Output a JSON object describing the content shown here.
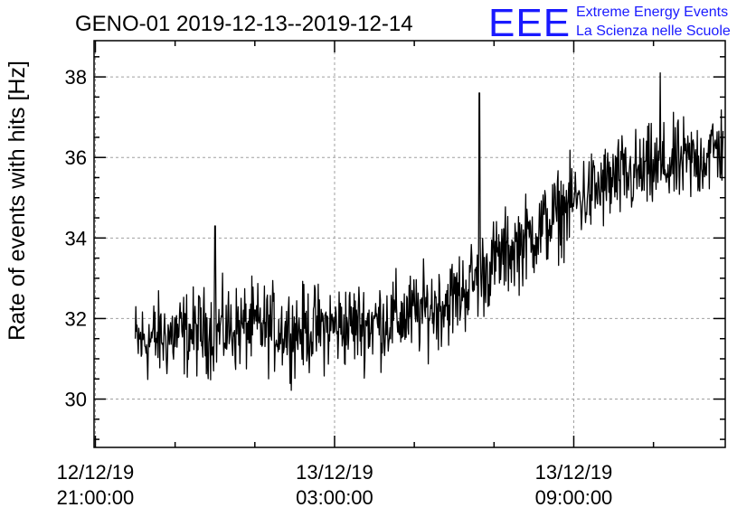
{
  "chart_data": {
    "type": "line",
    "title": "GENO-01 2019-12-13--2019-12-14",
    "ylabel": "Rate of events with hits [Hz]",
    "xlabel": "",
    "ylim": [
      28.8,
      38.9
    ],
    "yticks": [
      30,
      32,
      34,
      36,
      38
    ],
    "ytick_labels": [
      "30",
      "32",
      "34",
      "36",
      "38"
    ],
    "xlim": [
      "2019-12-12 20:58",
      "2019-12-13 12:48"
    ],
    "xticks": [
      "2019-12-12 21:00",
      "2019-12-13 03:00",
      "2019-12-13 09:00"
    ],
    "xtick_labels": [
      [
        "12/12/19",
        "21:00:00"
      ],
      [
        "13/12/19",
        "03:00:00"
      ],
      [
        "13/12/19",
        "09:00:00"
      ]
    ],
    "grid": true,
    "legend": "none",
    "series": [
      {
        "color": "#000000",
        "x": [
          "2019-12-12 22:00",
          "2019-12-12 23:00",
          "2019-12-13 00:00",
          "2019-12-13 01:00",
          "2019-12-13 02:00",
          "2019-12-13 03:00",
          "2019-12-13 04:00",
          "2019-12-13 05:00",
          "2019-12-13 06:00",
          "2019-12-13 07:00",
          "2019-12-13 08:00",
          "2019-12-13 09:00",
          "2019-12-13 10:00",
          "2019-12-13 11:00",
          "2019-12-13 12:00",
          "2019-12-13 12:45"
        ],
        "y": [
          31.4,
          31.6,
          31.7,
          31.8,
          31.7,
          31.8,
          31.9,
          32.1,
          32.5,
          33.4,
          34.1,
          34.9,
          35.4,
          35.7,
          35.9,
          36.3
        ]
      }
    ],
    "annotations": [
      {
        "x": "2019-12-13 06:38",
        "y": 37.6
      },
      {
        "x": "2019-12-13 11:10",
        "y": 38.1
      },
      {
        "x": "2019-12-13 00:00",
        "y": 34.3
      }
    ]
  },
  "logo": {
    "letters": "EEE",
    "line1": "Extreme Energy Events",
    "line2": "La Scienza nelle Scuole"
  },
  "colors": {
    "logo": "#1a1aff",
    "grid": "#a0a0a0",
    "line": "#000000"
  }
}
